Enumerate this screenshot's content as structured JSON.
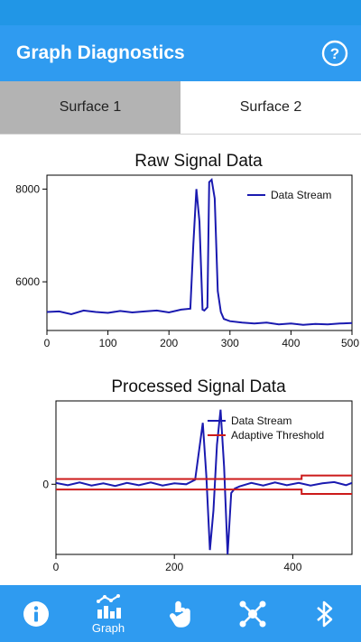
{
  "app": {
    "title": "Graph Diagnostics",
    "accent_color": "#2f9bf0",
    "help_icon": "help-circle-icon"
  },
  "tabs": [
    {
      "label": "Surface 1",
      "active": true
    },
    {
      "label": "Surface 2",
      "active": false
    }
  ],
  "bottom_nav": [
    {
      "icon": "info-icon",
      "label": ""
    },
    {
      "icon": "graph-icon",
      "label": "Graph",
      "active": true
    },
    {
      "icon": "touch-icon",
      "label": ""
    },
    {
      "icon": "network-icon",
      "label": ""
    },
    {
      "icon": "bluetooth-icon",
      "label": ""
    }
  ],
  "chart_data": [
    {
      "type": "line",
      "title": "Raw Signal Data",
      "xlabel": "",
      "ylabel": "",
      "xlim": [
        0,
        500
      ],
      "ylim": [
        4950,
        8300
      ],
      "x_ticks": [
        0,
        100,
        200,
        300,
        400,
        500
      ],
      "y_ticks": [
        6000,
        8000
      ],
      "legend_position": "top-right",
      "grid": false,
      "series": [
        {
          "name": "Data Stream",
          "color": "#1a1ab0",
          "x": [
            0,
            20,
            40,
            60,
            80,
            100,
            120,
            140,
            160,
            180,
            200,
            220,
            235,
            240,
            245,
            250,
            255,
            258,
            263,
            266,
            270,
            275,
            280,
            285,
            290,
            300,
            320,
            340,
            360,
            380,
            400,
            420,
            440,
            460,
            480,
            500
          ],
          "y": [
            5350,
            5360,
            5300,
            5380,
            5350,
            5330,
            5370,
            5340,
            5360,
            5380,
            5340,
            5400,
            5420,
            6800,
            8000,
            7300,
            5400,
            5380,
            5450,
            8150,
            8200,
            7800,
            5800,
            5350,
            5200,
            5150,
            5120,
            5100,
            5120,
            5080,
            5100,
            5070,
            5090,
            5080,
            5100,
            5110
          ]
        }
      ]
    },
    {
      "type": "line",
      "title": "Processed Signal Data",
      "xlabel": "",
      "ylabel": "",
      "xlim": [
        0,
        500
      ],
      "ylim": [
        -1.6,
        1.9
      ],
      "x_ticks": [
        0,
        200,
        400
      ],
      "y_ticks": [
        0
      ],
      "legend_position": "top-right",
      "grid": false,
      "series": [
        {
          "name": "Data Stream",
          "color": "#1a1ab0",
          "x": [
            0,
            20,
            40,
            60,
            80,
            100,
            120,
            140,
            160,
            180,
            200,
            220,
            235,
            242,
            248,
            254,
            260,
            266,
            272,
            278,
            284,
            290,
            296,
            302,
            310,
            330,
            350,
            370,
            390,
            410,
            430,
            450,
            470,
            490,
            500
          ],
          "y": [
            0.03,
            -0.02,
            0.04,
            -0.03,
            0.02,
            -0.04,
            0.03,
            -0.02,
            0.04,
            -0.03,
            0.02,
            0.0,
            0.1,
            0.8,
            1.4,
            0.2,
            -1.5,
            -0.6,
            0.9,
            1.7,
            0.4,
            -1.6,
            -0.2,
            -0.1,
            -0.05,
            0.03,
            -0.03,
            0.04,
            -0.02,
            0.03,
            -0.03,
            0.02,
            0.05,
            -0.02,
            0.03
          ]
        },
        {
          "name": "Adaptive Threshold",
          "color": "#cc1a1a",
          "x": [
            0,
            415,
            415,
            500
          ],
          "y_upper": [
            0.12,
            0.12,
            0.2,
            0.2
          ],
          "y_lower": [
            -0.12,
            -0.12,
            -0.22,
            -0.22
          ]
        }
      ]
    }
  ]
}
